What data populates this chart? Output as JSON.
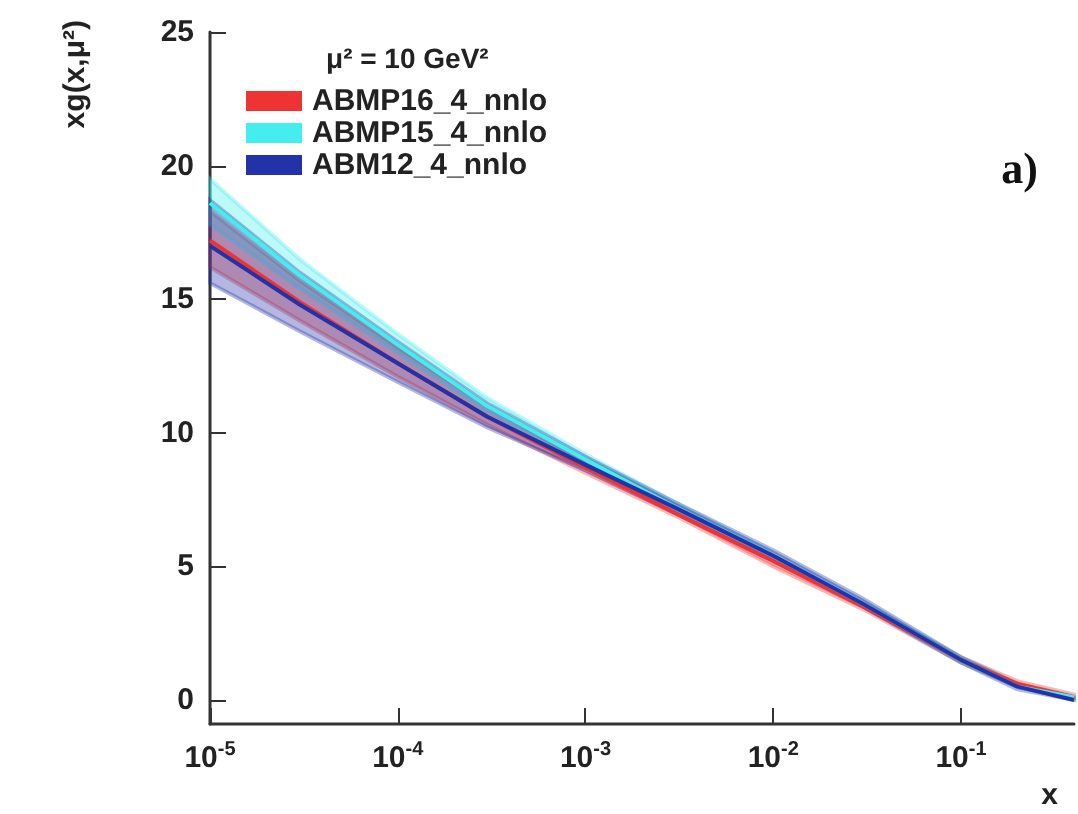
{
  "chart_data": {
    "type": "line",
    "xlabel": "x",
    "ylabel": "xg(x,μ²)",
    "legend_title": "μ² = 10 GeV²",
    "annotations": [
      "a)"
    ],
    "x": [
      1e-05,
      3e-05,
      0.0001,
      0.0003,
      0.001,
      0.003,
      0.01,
      0.03,
      0.1,
      0.2,
      0.4
    ],
    "series": [
      {
        "name": "ABMP16_4_nnlo",
        "color": "#ee3333",
        "values": [
          17.2,
          14.9,
          12.6,
          10.6,
          8.7,
          7.0,
          5.2,
          3.5,
          1.5,
          0.6,
          0.1
        ],
        "lower": [
          16.2,
          14.2,
          12.1,
          10.3,
          8.5,
          6.9,
          5.0,
          3.4,
          1.4,
          0.5,
          0.1
        ],
        "upper": [
          18.3,
          15.7,
          13.2,
          11.0,
          8.9,
          7.2,
          5.4,
          3.6,
          1.6,
          0.7,
          0.2
        ]
      },
      {
        "name": "ABMP15_4_nnlo",
        "color": "#44eeee",
        "values": [
          18.6,
          15.9,
          13.3,
          11.0,
          9.0,
          7.2,
          5.4,
          3.6,
          1.5,
          0.5,
          0.1
        ],
        "lower": [
          17.8,
          15.4,
          13.0,
          10.8,
          8.9,
          7.1,
          5.3,
          3.5,
          1.4,
          0.5,
          0.0
        ],
        "upper": [
          19.5,
          16.5,
          13.7,
          11.3,
          9.2,
          7.4,
          5.5,
          3.7,
          1.6,
          0.6,
          0.1
        ]
      },
      {
        "name": "ABM12_4_nnlo",
        "color": "#2233aa",
        "values": [
          17.0,
          14.8,
          12.6,
          10.6,
          8.8,
          7.2,
          5.4,
          3.6,
          1.5,
          0.5,
          0.0
        ],
        "lower": [
          15.6,
          13.8,
          11.9,
          10.2,
          8.6,
          7.0,
          5.2,
          3.5,
          1.4,
          0.4,
          0.0
        ],
        "upper": [
          18.7,
          16.0,
          13.4,
          11.1,
          9.1,
          7.4,
          5.6,
          3.8,
          1.6,
          0.6,
          0.1
        ]
      }
    ],
    "log": "x",
    "xlim": [
      1e-05,
      0.4
    ],
    "xticks": [
      {
        "value": 1e-05,
        "label": "10$^{-5}$"
      },
      {
        "value": 0.0001,
        "label": "10$^{-4}$"
      },
      {
        "value": 0.001,
        "label": "10$^{-3}$"
      },
      {
        "value": 0.01,
        "label": "10$^{-2}$"
      },
      {
        "value": 0.1,
        "label": "10$^{-1}$"
      }
    ],
    "ylim": [
      -0.9,
      25
    ],
    "yticks": [
      0,
      5,
      10,
      15,
      20,
      25
    ],
    "grid": false,
    "legend": "top left"
  }
}
